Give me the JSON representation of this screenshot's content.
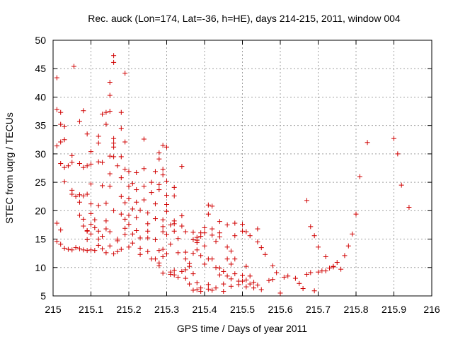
{
  "chart_data": {
    "type": "scatter",
    "title": "Rec. auck (Lon=174, Lat=-36, h=HE), days 214-215, 2011, window 004",
    "xlabel": "GPS time / Days of year 2011",
    "ylabel": "STEC from uqrg / TECUs",
    "xlim": [
      215,
      216
    ],
    "ylim": [
      5,
      50
    ],
    "xticks": [
      215,
      215.1,
      215.2,
      215.3,
      215.4,
      215.5,
      215.6,
      215.7,
      215.8,
      215.9,
      216
    ],
    "xtick_labels": [
      "215",
      "215.1",
      "215.2",
      "215.3",
      "215.4",
      "215.5",
      "215.6",
      "215.7",
      "215.8",
      "215.9",
      "216"
    ],
    "yticks": [
      5,
      10,
      15,
      20,
      25,
      30,
      35,
      40,
      45,
      50
    ],
    "ytick_labels": [
      "5",
      "10",
      "15",
      "20",
      "25",
      "30",
      "35",
      "40",
      "45",
      "50"
    ],
    "grid": true,
    "marker": "+",
    "color": "#d00000",
    "points": [
      [
        215.01,
        43.4
      ],
      [
        215.01,
        37.8
      ],
      [
        215.02,
        37.3
      ],
      [
        215.01,
        31.4
      ],
      [
        215.02,
        32.1
      ],
      [
        215.03,
        32.5
      ],
      [
        215.02,
        35.2
      ],
      [
        215.03,
        34.8
      ],
      [
        215.02,
        28.3
      ],
      [
        215.03,
        27.6
      ],
      [
        215.01,
        17.8
      ],
      [
        215.02,
        16.6
      ],
      [
        215.01,
        14.6
      ],
      [
        215.02,
        14.1
      ],
      [
        215.03,
        13.4
      ],
      [
        215.04,
        13.2
      ],
      [
        215.03,
        25.1
      ],
      [
        215.04,
        27.9
      ],
      [
        215.05,
        28.5
      ],
      [
        215.05,
        29.7
      ],
      [
        215.05,
        23.6
      ],
      [
        215.05,
        22.9
      ],
      [
        215.06,
        22.5
      ],
      [
        215.055,
        45.4
      ],
      [
        215.05,
        13.1
      ],
      [
        215.06,
        13.5
      ],
      [
        215.07,
        35.7
      ],
      [
        215.08,
        37.6
      ],
      [
        215.07,
        28.3
      ],
      [
        215.08,
        27.6
      ],
      [
        215.07,
        22.8
      ],
      [
        215.08,
        22.6
      ],
      [
        215.07,
        21.5
      ],
      [
        215.07,
        19.2
      ],
      [
        215.08,
        18.5
      ],
      [
        215.08,
        17.3
      ],
      [
        215.09,
        16.5
      ],
      [
        215.07,
        13.3
      ],
      [
        215.08,
        13.1
      ],
      [
        215.09,
        13.0
      ],
      [
        215.09,
        33.5
      ],
      [
        215.1,
        30.4
      ],
      [
        215.1,
        28.2
      ],
      [
        215.09,
        27.9
      ],
      [
        215.1,
        24.7
      ],
      [
        215.09,
        22.9
      ],
      [
        215.1,
        21.2
      ],
      [
        215.1,
        19.5
      ],
      [
        215.1,
        17.6
      ],
      [
        215.09,
        16.4
      ],
      [
        215.1,
        15.9
      ],
      [
        215.09,
        14.9
      ],
      [
        215.1,
        13.1
      ],
      [
        215.11,
        13.0
      ],
      [
        215.12,
        33.1
      ],
      [
        215.12,
        31.9
      ],
      [
        215.12,
        28.6
      ],
      [
        215.13,
        28.5
      ],
      [
        215.13,
        24.4
      ],
      [
        215.12,
        20.9
      ],
      [
        215.11,
        18.4
      ],
      [
        215.11,
        17.0
      ],
      [
        215.12,
        16.4
      ],
      [
        215.12,
        15.0
      ],
      [
        215.13,
        15.5
      ],
      [
        215.12,
        13.9
      ],
      [
        215.13,
        13.3
      ],
      [
        215.14,
        12.6
      ],
      [
        215.13,
        37.0
      ],
      [
        215.14,
        37.3
      ],
      [
        215.15,
        37.5
      ],
      [
        215.15,
        40.3
      ],
      [
        215.15,
        42.6
      ],
      [
        215.16,
        47.3
      ],
      [
        215.16,
        46.1
      ],
      [
        215.14,
        35.2
      ],
      [
        215.16,
        32.7
      ],
      [
        215.16,
        31.9
      ],
      [
        215.16,
        31.2
      ],
      [
        215.15,
        29.6
      ],
      [
        215.16,
        29.5
      ],
      [
        215.15,
        26.5
      ],
      [
        215.15,
        24.3
      ],
      [
        215.14,
        21.3
      ],
      [
        215.14,
        18.2
      ],
      [
        215.14,
        16.8
      ],
      [
        215.15,
        16.3
      ],
      [
        215.15,
        13.8
      ],
      [
        215.16,
        12.4
      ],
      [
        215.17,
        12.8
      ],
      [
        215.16,
        20.0
      ],
      [
        215.17,
        15.0
      ],
      [
        215.17,
        14.7
      ],
      [
        215.18,
        37.3
      ],
      [
        215.18,
        34.5
      ],
      [
        215.18,
        29.5
      ],
      [
        215.17,
        27.9
      ],
      [
        215.18,
        25.8
      ],
      [
        215.18,
        22.5
      ],
      [
        215.19,
        21.4
      ],
      [
        215.18,
        19.4
      ],
      [
        215.19,
        18.5
      ],
      [
        215.19,
        16.9
      ],
      [
        215.19,
        15.8
      ],
      [
        215.18,
        13.2
      ],
      [
        215.19,
        44.2
      ],
      [
        215.19,
        32.1
      ],
      [
        215.19,
        27.3
      ],
      [
        215.2,
        26.9
      ],
      [
        215.2,
        24.3
      ],
      [
        215.21,
        24.8
      ],
      [
        215.2,
        22.1
      ],
      [
        215.21,
        20.3
      ],
      [
        215.2,
        19.2
      ],
      [
        215.2,
        17.6
      ],
      [
        215.21,
        15.9
      ],
      [
        215.21,
        14.3
      ],
      [
        215.2,
        13.6
      ],
      [
        215.22,
        26.7
      ],
      [
        215.22,
        23.7
      ],
      [
        215.22,
        21.5
      ],
      [
        215.23,
        20.1
      ],
      [
        215.22,
        18.8
      ],
      [
        215.22,
        16.5
      ],
      [
        215.23,
        15.2
      ],
      [
        215.23,
        13.4
      ],
      [
        215.23,
        12.3
      ],
      [
        215.24,
        32.6
      ],
      [
        215.24,
        27.4
      ],
      [
        215.24,
        24.3
      ],
      [
        215.24,
        21.9
      ],
      [
        215.25,
        19.6
      ],
      [
        215.25,
        17.7
      ],
      [
        215.25,
        16.4
      ],
      [
        215.25,
        15.2
      ],
      [
        215.25,
        12.8
      ],
      [
        215.26,
        11.5
      ],
      [
        215.26,
        25.0
      ],
      [
        215.27,
        26.9
      ],
      [
        215.26,
        23.2
      ],
      [
        215.27,
        21.2
      ],
      [
        215.27,
        18.6
      ],
      [
        215.27,
        14.9
      ],
      [
        215.27,
        11.5
      ],
      [
        215.28,
        10.8
      ],
      [
        215.28,
        30.2
      ],
      [
        215.28,
        29.1
      ],
      [
        215.28,
        24.6
      ],
      [
        215.28,
        23.7
      ],
      [
        215.29,
        27.3
      ],
      [
        215.29,
        26.3
      ],
      [
        215.29,
        31.5
      ],
      [
        215.29,
        18.4
      ],
      [
        215.29,
        17.2
      ],
      [
        215.29,
        16.3
      ],
      [
        215.29,
        13.2
      ],
      [
        215.28,
        13.0
      ],
      [
        215.29,
        11.9
      ],
      [
        215.28,
        10.3
      ],
      [
        215.29,
        9.0
      ],
      [
        215.3,
        31.2
      ],
      [
        215.3,
        25.2
      ],
      [
        215.3,
        22.7
      ],
      [
        215.3,
        21.1
      ],
      [
        215.3,
        19.9
      ],
      [
        215.31,
        17.5
      ],
      [
        215.3,
        15.8
      ],
      [
        215.31,
        14.1
      ],
      [
        215.3,
        12.4
      ],
      [
        215.31,
        9.2
      ],
      [
        215.31,
        8.8
      ],
      [
        215.32,
        24.1
      ],
      [
        215.32,
        22.6
      ],
      [
        215.32,
        18.2
      ],
      [
        215.32,
        17.7
      ],
      [
        215.32,
        16.4
      ],
      [
        215.33,
        15.1
      ],
      [
        215.33,
        12.6
      ],
      [
        215.32,
        9.5
      ],
      [
        215.32,
        8.7
      ],
      [
        215.33,
        8.3
      ],
      [
        215.34,
        9.3
      ],
      [
        215.34,
        27.8
      ],
      [
        215.34,
        19.1
      ],
      [
        215.34,
        17.3
      ],
      [
        215.35,
        16.3
      ],
      [
        215.35,
        12.7
      ],
      [
        215.35,
        11.5
      ],
      [
        215.35,
        9.6
      ],
      [
        215.35,
        8.1
      ],
      [
        215.36,
        10.7
      ],
      [
        215.36,
        10.2
      ],
      [
        215.36,
        7.1
      ],
      [
        215.37,
        16.2
      ],
      [
        215.37,
        14.9
      ],
      [
        215.37,
        12.5
      ],
      [
        215.37,
        8.9
      ],
      [
        215.37,
        6.0
      ],
      [
        215.38,
        15.3
      ],
      [
        215.38,
        14.8
      ],
      [
        215.38,
        14.4
      ],
      [
        215.38,
        13.1
      ],
      [
        215.38,
        7.3
      ],
      [
        215.38,
        6.1
      ],
      [
        215.39,
        16.1
      ],
      [
        215.39,
        15.5
      ],
      [
        215.39,
        12.1
      ],
      [
        215.39,
        6.4
      ],
      [
        215.39,
        5.8
      ],
      [
        215.4,
        17.0
      ],
      [
        215.4,
        16.1
      ],
      [
        215.4,
        13.8
      ],
      [
        215.4,
        10.6
      ],
      [
        215.41,
        11.5
      ],
      [
        215.41,
        7.0
      ],
      [
        215.41,
        6.2
      ],
      [
        215.41,
        21.0
      ],
      [
        215.41,
        19.4
      ],
      [
        215.42,
        20.8
      ],
      [
        215.42,
        16.8
      ],
      [
        215.42,
        15.7
      ],
      [
        215.43,
        14.6
      ],
      [
        215.42,
        11.5
      ],
      [
        215.43,
        10.0
      ],
      [
        215.43,
        6.4
      ],
      [
        215.42,
        6.0
      ],
      [
        215.44,
        18.1
      ],
      [
        215.44,
        16.1
      ],
      [
        215.44,
        15.4
      ],
      [
        215.44,
        9.9
      ],
      [
        215.44,
        8.7
      ],
      [
        215.45,
        9.3
      ],
      [
        215.45,
        7.1
      ],
      [
        215.45,
        5.8
      ],
      [
        215.46,
        17.5
      ],
      [
        215.46,
        13.6
      ],
      [
        215.46,
        11.5
      ],
      [
        215.46,
        8.5
      ],
      [
        215.47,
        12.9
      ],
      [
        215.47,
        10.6
      ],
      [
        215.47,
        8.0
      ],
      [
        215.47,
        6.7
      ],
      [
        215.48,
        17.8
      ],
      [
        215.48,
        15.6
      ],
      [
        215.48,
        11.5
      ],
      [
        215.48,
        8.9
      ],
      [
        215.49,
        7.6
      ],
      [
        215.49,
        7.0
      ],
      [
        215.5,
        17.6
      ],
      [
        215.5,
        16.4
      ],
      [
        215.5,
        8.6
      ],
      [
        215.5,
        7.6
      ],
      [
        215.51,
        16.3
      ],
      [
        215.51,
        10.2
      ],
      [
        215.51,
        7.8
      ],
      [
        215.51,
        6.6
      ],
      [
        215.52,
        15.6
      ],
      [
        215.52,
        8.5
      ],
      [
        215.52,
        7.1
      ],
      [
        215.53,
        7.4
      ],
      [
        215.53,
        6.4
      ],
      [
        215.54,
        16.8
      ],
      [
        215.54,
        14.5
      ],
      [
        215.54,
        6.9
      ],
      [
        215.55,
        13.5
      ],
      [
        215.55,
        6.1
      ],
      [
        215.56,
        12.3
      ],
      [
        215.57,
        7.7
      ],
      [
        215.58,
        10.3
      ],
      [
        215.58,
        7.9
      ],
      [
        215.59,
        9.1
      ],
      [
        215.6,
        5.5
      ],
      [
        215.61,
        8.3
      ],
      [
        215.62,
        8.5
      ],
      [
        215.64,
        8.1
      ],
      [
        215.65,
        7.2
      ],
      [
        215.66,
        6.3
      ],
      [
        215.67,
        8.8
      ],
      [
        215.68,
        9.1
      ],
      [
        215.69,
        5.9
      ],
      [
        215.7,
        9.2
      ],
      [
        215.71,
        9.4
      ],
      [
        215.72,
        9.4
      ],
      [
        215.73,
        9.9
      ],
      [
        215.74,
        10.2
      ],
      [
        215.76,
        9.7
      ],
      [
        215.77,
        12.1
      ],
      [
        215.78,
        13.8
      ],
      [
        215.67,
        21.8
      ],
      [
        215.68,
        17.2
      ],
      [
        215.69,
        15.6
      ],
      [
        215.7,
        13.6
      ],
      [
        215.72,
        11.9
      ],
      [
        215.74,
        10.1
      ],
      [
        215.75,
        10.9
      ],
      [
        215.79,
        15.9
      ],
      [
        215.8,
        19.4
      ],
      [
        215.81,
        26.0
      ],
      [
        215.83,
        32.0
      ],
      [
        215.9,
        32.7
      ],
      [
        215.91,
        30.0
      ],
      [
        215.92,
        24.5
      ],
      [
        215.94,
        20.6
      ]
    ]
  }
}
